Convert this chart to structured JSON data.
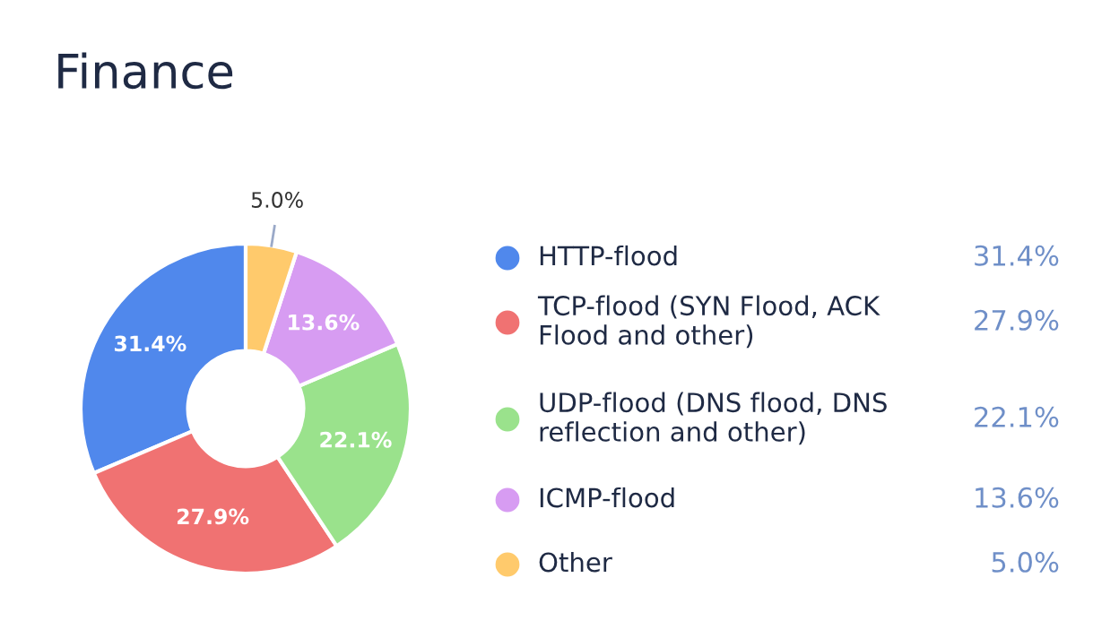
{
  "chart_data": {
    "type": "donut",
    "title": "Finance",
    "categories": [
      "HTTP-flood",
      "TCP-flood (SYN Flood, ACK\nFlood and other)",
      "UDP-flood (DNS flood, DNS\nreflection and other)",
      "ICMP-flood",
      "Other"
    ],
    "values": [
      31.4,
      27.9,
      22.1,
      13.6,
      5.0
    ],
    "colors": [
      "#5088ec",
      "#f07272",
      "#9ae28c",
      "#d79cf2",
      "#ffca6c"
    ],
    "value_labels": [
      "31.4%",
      "27.9%",
      "22.1%",
      "13.6%",
      "5.0%"
    ],
    "legend": "right"
  }
}
